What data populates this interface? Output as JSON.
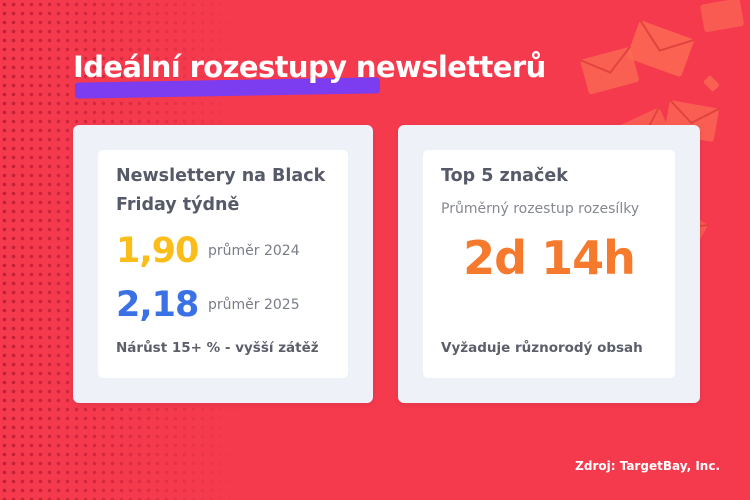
{
  "title": "Ideální rozestupy newsletterů",
  "left_card": {
    "heading": "Newslettery na Black Friday týdně",
    "stats": [
      {
        "value": "1,90",
        "label": "průměr 2024",
        "color": "#fbbd1a"
      },
      {
        "value": "2,18",
        "label": "průměr 2025",
        "color": "#3a72e6"
      }
    ],
    "note": "Nárůst 15+ % - vyšší zátěž"
  },
  "right_card": {
    "heading": "Top 5 značek",
    "sub_label": "Průměrný rozestup rozesílky",
    "big_value": "2d 14h",
    "note": "Vyžaduje různorodý obsah"
  },
  "source": "Zdroj: TargetBay, Inc.",
  "colors": {
    "background": "#f53a4e",
    "highlight": "#7c3cf0",
    "accent_orange": "#f57a2e"
  },
  "decor": {
    "envelopes": "envelope-icons"
  }
}
